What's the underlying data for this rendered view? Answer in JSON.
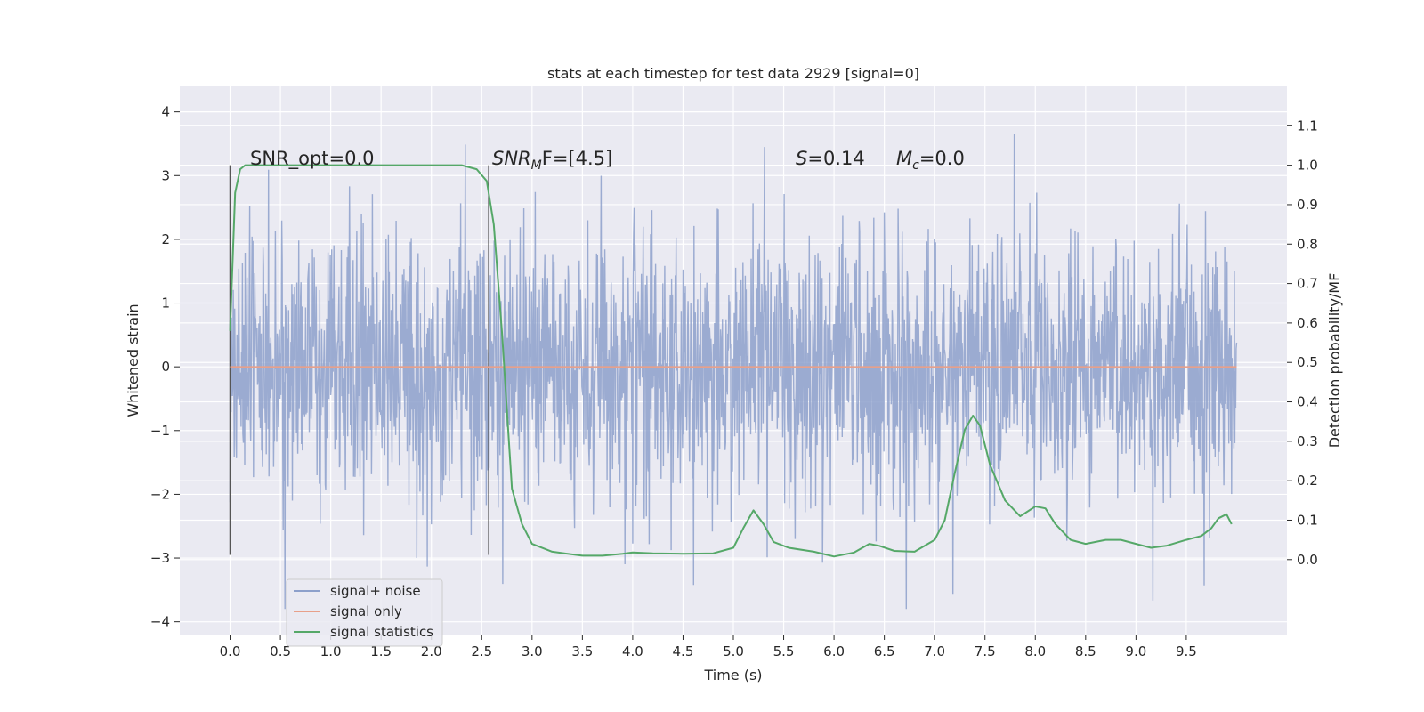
{
  "chart_data": {
    "type": "line",
    "title": "stats at each timestep for test data 2929 [signal=0]",
    "xlabel": "Time (s)",
    "ylabel": "Whitened strain",
    "y2label": "Detection probability/MF",
    "xlim": [
      -0.5,
      10.5
    ],
    "ylim": [
      -4.2,
      4.4
    ],
    "y2lim": [
      -0.19,
      1.2
    ],
    "xticks": [
      "0.0",
      "0.5",
      "1.0",
      "1.5",
      "2.0",
      "2.5",
      "3.0",
      "3.5",
      "4.0",
      "4.5",
      "5.0",
      "5.5",
      "6.0",
      "6.5",
      "7.0",
      "7.5",
      "8.0",
      "8.5",
      "9.0",
      "9.5"
    ],
    "yticks": [
      "−4",
      "−3",
      "−2",
      "−1",
      "0",
      "1",
      "2",
      "3",
      "4"
    ],
    "y2ticks": [
      "0.0",
      "0.1",
      "0.2",
      "0.3",
      "0.4",
      "0.5",
      "0.6",
      "0.7",
      "0.8",
      "0.9",
      "1.0",
      "1.1"
    ],
    "grid": true,
    "legend_position": "bottom-left",
    "annotations": {
      "snr_opt": "SNR_opt=0.0",
      "snr_mf_prefix": "SNR",
      "snr_mf_sub": "M",
      "snr_mf_suffix": "F=[4.5]",
      "s_prefix": "S",
      "s_suffix": "=0.14",
      "mc_prefix": "M",
      "mc_sub": "c",
      "mc_suffix": "=0.0"
    },
    "markers_x": [
      0.0,
      2.57
    ],
    "series": [
      {
        "name": "signal+ noise",
        "color": "#8da0cb",
        "axis": "left",
        "note": "white-noise strain, sampled densely",
        "x_range": [
          0.0,
          10.0
        ],
        "envelope_core": [
          -1.6,
          1.6
        ],
        "envelope_peaks": [
          -3.8,
          4.05
        ]
      },
      {
        "name": "signal only",
        "color": "#e8a08a",
        "axis": "left",
        "x": [
          0.0,
          10.0
        ],
        "y": [
          0.0,
          0.0
        ]
      },
      {
        "name": "signal statistics",
        "color": "#55a868",
        "axis": "right",
        "x": [
          0.0,
          0.05,
          0.1,
          0.15,
          0.25,
          0.5,
          1.0,
          1.5,
          2.0,
          2.3,
          2.45,
          2.55,
          2.62,
          2.7,
          2.8,
          2.9,
          3.0,
          3.2,
          3.5,
          3.7,
          3.9,
          4.0,
          4.2,
          4.5,
          4.8,
          5.0,
          5.1,
          5.2,
          5.3,
          5.4,
          5.55,
          5.8,
          6.0,
          6.2,
          6.35,
          6.45,
          6.6,
          6.8,
          7.0,
          7.1,
          7.2,
          7.3,
          7.38,
          7.45,
          7.55,
          7.7,
          7.85,
          8.0,
          8.1,
          8.2,
          8.35,
          8.5,
          8.7,
          8.85,
          9.0,
          9.15,
          9.3,
          9.5,
          9.65,
          9.75,
          9.82,
          9.9,
          9.95
        ],
        "y": [
          0.58,
          0.93,
          0.99,
          1.0,
          1.0,
          1.0,
          1.0,
          1.0,
          1.0,
          1.0,
          0.99,
          0.96,
          0.85,
          0.58,
          0.18,
          0.09,
          0.04,
          0.02,
          0.01,
          0.01,
          0.015,
          0.018,
          0.016,
          0.015,
          0.016,
          0.03,
          0.08,
          0.125,
          0.09,
          0.045,
          0.03,
          0.02,
          0.008,
          0.018,
          0.04,
          0.035,
          0.022,
          0.02,
          0.05,
          0.1,
          0.22,
          0.33,
          0.365,
          0.34,
          0.24,
          0.15,
          0.11,
          0.135,
          0.13,
          0.09,
          0.05,
          0.04,
          0.05,
          0.05,
          0.04,
          0.03,
          0.035,
          0.05,
          0.06,
          0.08,
          0.105,
          0.115,
          0.09
        ]
      }
    ]
  }
}
